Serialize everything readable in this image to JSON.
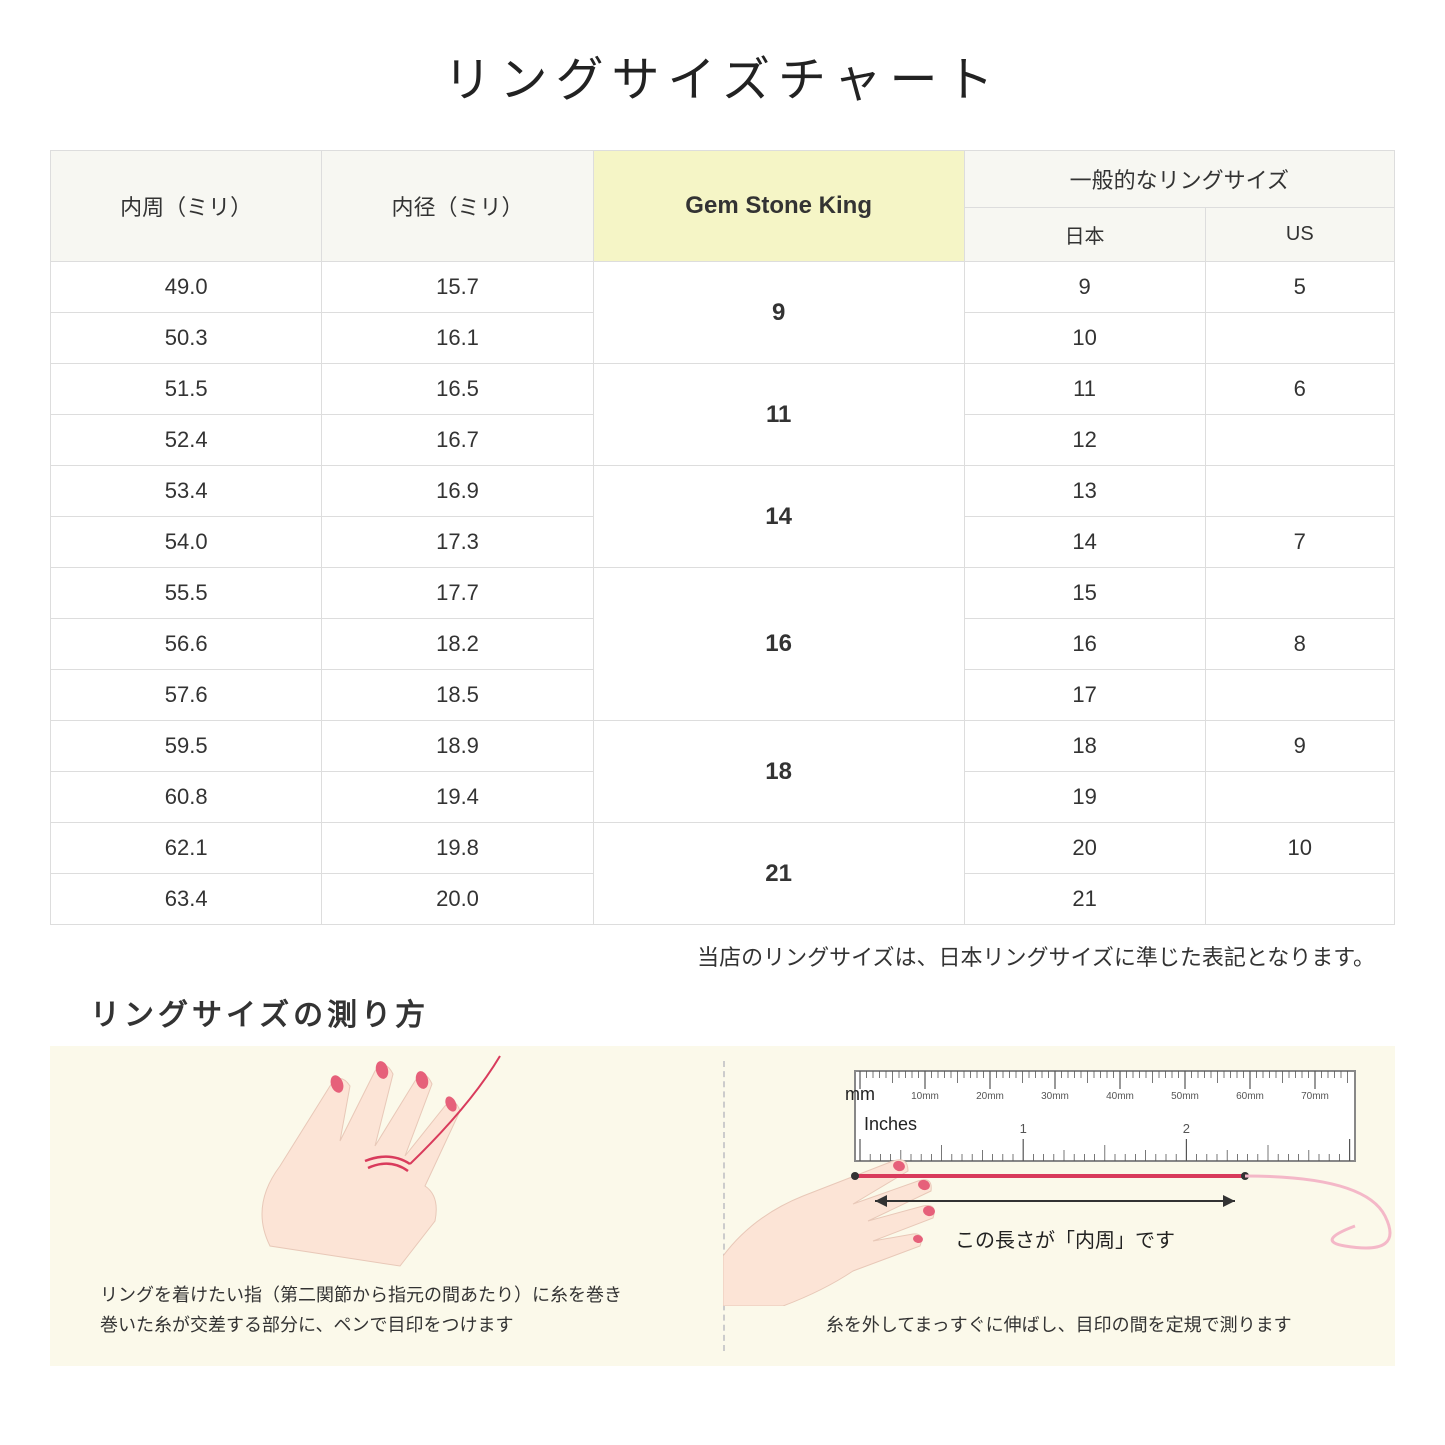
{
  "title": "リングサイズチャート",
  "headers": {
    "circumference": "内周（ミリ）",
    "diameter": "内径（ミリ）",
    "gsk": "Gem Stone King",
    "general": "一般的なリングサイズ",
    "japan": "日本",
    "us": "US"
  },
  "rows": [
    {
      "circ": "49.0",
      "dia": "15.7",
      "jp": "9",
      "us": "5"
    },
    {
      "circ": "50.3",
      "dia": "16.1",
      "jp": "10",
      "us": ""
    },
    {
      "circ": "51.5",
      "dia": "16.5",
      "jp": "11",
      "us": "6"
    },
    {
      "circ": "52.4",
      "dia": "16.7",
      "jp": "12",
      "us": ""
    },
    {
      "circ": "53.4",
      "dia": "16.9",
      "jp": "13",
      "us": ""
    },
    {
      "circ": "54.0",
      "dia": "17.3",
      "jp": "14",
      "us": "7"
    },
    {
      "circ": "55.5",
      "dia": "17.7",
      "jp": "15",
      "us": ""
    },
    {
      "circ": "56.6",
      "dia": "18.2",
      "jp": "16",
      "us": "8"
    },
    {
      "circ": "57.6",
      "dia": "18.5",
      "jp": "17",
      "us": ""
    },
    {
      "circ": "59.5",
      "dia": "18.9",
      "jp": "18",
      "us": "9"
    },
    {
      "circ": "60.8",
      "dia": "19.4",
      "jp": "19",
      "us": ""
    },
    {
      "circ": "62.1",
      "dia": "19.8",
      "jp": "20",
      "us": "10"
    },
    {
      "circ": "63.4",
      "dia": "20.0",
      "jp": "21",
      "us": ""
    }
  ],
  "gsk_groups": [
    {
      "span": 2,
      "value": "9"
    },
    {
      "span": 2,
      "value": "11"
    },
    {
      "span": 2,
      "value": "14"
    },
    {
      "span": 3,
      "value": "16"
    },
    {
      "span": 2,
      "value": "18"
    },
    {
      "span": 2,
      "value": "21"
    }
  ],
  "note": "当店のリングサイズは、日本リングサイズに準じた表記となります。",
  "howto_title": "リングサイズの測り方",
  "instruction_left": "リングを着けたい指（第二関節から指元の間あたり）に糸を巻き\n巻いた糸が交差する部分に、ペンで目印をつけます",
  "instruction_right_label": "この長さが「内周」です",
  "instruction_right": "糸を外してまっすぐに伸ばし、目印の間を定規で測ります",
  "ruler": {
    "mm_label": "mm",
    "inches_label": "Inches",
    "mm_ticks": [
      "10mm",
      "20mm",
      "30mm",
      "40mm",
      "50mm",
      "60mm",
      "70mm"
    ],
    "inch_ticks": [
      "1",
      "2"
    ]
  },
  "colors": {
    "header_bg": "#f7f7f2",
    "gsk_bg": "#f5f5c6",
    "instruction_bg": "#fbf9ea",
    "border": "#dddddd",
    "hand_skin": "#fce4d6",
    "nail": "#e6607a",
    "thread": "#d93b5c"
  }
}
